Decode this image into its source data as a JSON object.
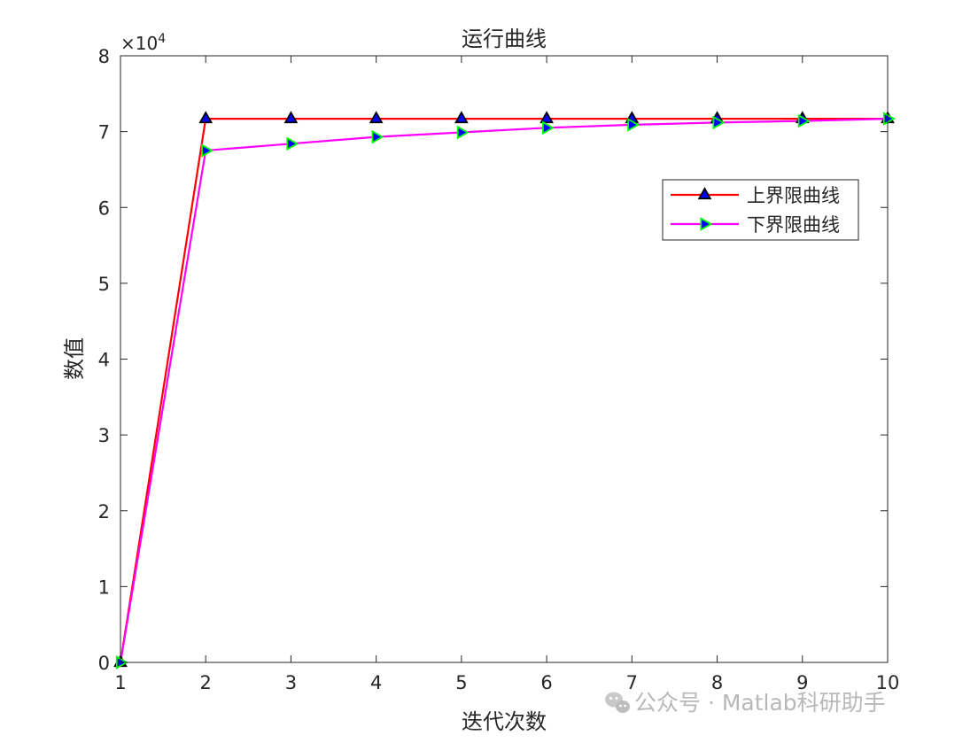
{
  "chart_data": {
    "type": "line",
    "title": "运行曲线",
    "xlabel": "迭代次数",
    "ylabel": "数值",
    "y_exponent_label": "×10",
    "y_exponent_power": "4",
    "xlim": [
      1,
      10
    ],
    "ylim": [
      0,
      80000
    ],
    "x_ticks": [
      1,
      2,
      3,
      4,
      5,
      6,
      7,
      8,
      9,
      10
    ],
    "y_ticks": [
      0,
      10000,
      20000,
      30000,
      40000,
      50000,
      60000,
      70000,
      80000
    ],
    "y_tick_labels": [
      "0",
      "1",
      "2",
      "3",
      "4",
      "5",
      "6",
      "7",
      "8"
    ],
    "x": [
      1,
      2,
      3,
      4,
      5,
      6,
      7,
      8,
      9,
      10
    ],
    "series": [
      {
        "name": "上界限曲线",
        "values": [
          0,
          71700,
          71700,
          71700,
          71700,
          71700,
          71700,
          71700,
          71700,
          71700
        ],
        "line_color": "#ff0000",
        "marker": "triangle-up",
        "marker_face": "#0000ff",
        "marker_edge": "#000000"
      },
      {
        "name": "下界限曲线",
        "values": [
          0,
          67500,
          68400,
          69300,
          69900,
          70500,
          70900,
          71200,
          71400,
          71700
        ],
        "line_color": "#ff00ff",
        "marker": "triangle-right",
        "marker_face": "#0000ff",
        "marker_edge": "#00ff00"
      }
    ],
    "legend_position": "top-right",
    "grid": false,
    "box": true
  },
  "watermark": {
    "text": "公众号 · Matlab科研助手",
    "icon": "wechat-icon"
  }
}
